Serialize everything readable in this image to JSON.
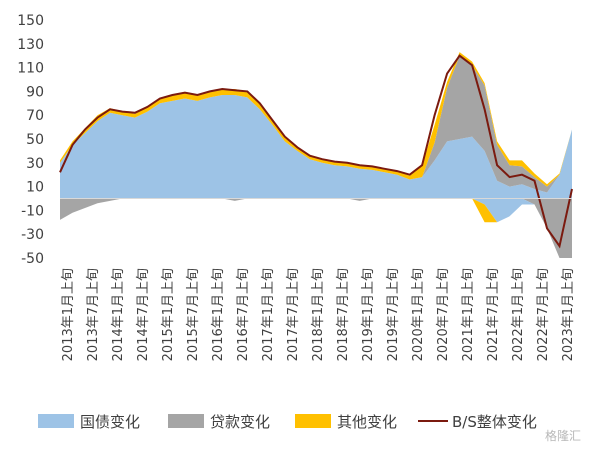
{
  "chart_data": {
    "type": "area",
    "y_ticks": [
      150,
      130,
      110,
      90,
      70,
      50,
      30,
      10,
      -10,
      -30,
      -50
    ],
    "ylim": [
      -50,
      150
    ],
    "x_ticks": [
      "2013年1月上旬",
      "2013年7月上旬",
      "2014年1月上旬",
      "2014年7月上旬",
      "2015年1月上旬",
      "2015年7月上旬",
      "2016年1月上旬",
      "2016年7月上旬",
      "2017年1月上旬",
      "2017年7月上旬",
      "2018年1月上旬",
      "2018年7月上旬",
      "2019年1月上旬",
      "2019年7月上旬",
      "2020年1月上旬",
      "2020年7月上旬",
      "2021年1月上旬",
      "2021年7月上旬",
      "2022年1月上旬",
      "2022年7月上旬",
      "2023年1月上旬"
    ],
    "x": [
      "2013-01",
      "2013-04",
      "2013-07",
      "2013-10",
      "2014-01",
      "2014-04",
      "2014-07",
      "2014-10",
      "2015-01",
      "2015-04",
      "2015-07",
      "2015-10",
      "2016-01",
      "2016-04",
      "2016-07",
      "2016-10",
      "2017-01",
      "2017-04",
      "2017-07",
      "2017-10",
      "2018-01",
      "2018-04",
      "2018-07",
      "2018-10",
      "2019-01",
      "2019-04",
      "2019-07",
      "2019-10",
      "2020-01",
      "2020-04",
      "2020-07",
      "2020-10",
      "2021-01",
      "2021-04",
      "2021-07",
      "2021-10",
      "2022-01",
      "2022-04",
      "2022-07",
      "2022-10",
      "2023-01",
      "2023-03"
    ],
    "series": [
      {
        "name": "国债变化",
        "color": "#9dc3e6",
        "stack": "pos",
        "values": [
          30,
          45,
          55,
          65,
          72,
          70,
          68,
          73,
          80,
          82,
          84,
          82,
          85,
          87,
          87,
          85,
          75,
          62,
          48,
          40,
          33,
          30,
          28,
          27,
          25,
          24,
          22,
          20,
          16,
          18,
          32,
          48,
          50,
          52,
          40,
          15,
          10,
          12,
          8,
          5,
          20,
          58
        ]
      },
      {
        "name": "贷款变化",
        "color": "#a5a5a5",
        "stack": "pos",
        "values": [
          0,
          0,
          0,
          0,
          0,
          0,
          0,
          0,
          0,
          0,
          0,
          0,
          0,
          0,
          0,
          0,
          0,
          0,
          0,
          0,
          0,
          0,
          0,
          0,
          0,
          0,
          0,
          0,
          0,
          0,
          15,
          45,
          70,
          60,
          55,
          30,
          18,
          15,
          10,
          5,
          0,
          0
        ]
      },
      {
        "name": "其他变化",
        "color": "#ffc000",
        "stack": "pos",
        "values": [
          2,
          3,
          4,
          5,
          4,
          3,
          3,
          4,
          4,
          5,
          5,
          5,
          5,
          5,
          5,
          5,
          5,
          4,
          4,
          3,
          3,
          3,
          3,
          3,
          3,
          3,
          3,
          3,
          3,
          10,
          15,
          5,
          3,
          3,
          2,
          3,
          4,
          5,
          3,
          2,
          1,
          0
        ]
      },
      {
        "name": "贷款变化_neg",
        "color": "#a5a5a5",
        "stack": "neg",
        "values": [
          -18,
          -12,
          -8,
          -4,
          -2,
          0,
          0,
          0,
          0,
          0,
          0,
          0,
          0,
          0,
          -2,
          0,
          0,
          0,
          0,
          0,
          0,
          0,
          0,
          0,
          -2,
          0,
          0,
          0,
          0,
          0,
          0,
          0,
          0,
          0,
          0,
          0,
          0,
          0,
          -5,
          -25,
          -50,
          -50
        ]
      },
      {
        "name": "国债变化_neg",
        "color": "#9dc3e6",
        "stack": "neg",
        "values": [
          0,
          0,
          0,
          0,
          0,
          0,
          0,
          0,
          0,
          0,
          0,
          0,
          0,
          0,
          0,
          0,
          0,
          0,
          0,
          0,
          0,
          0,
          0,
          0,
          0,
          0,
          0,
          0,
          0,
          0,
          0,
          0,
          0,
          0,
          -5,
          -20,
          -15,
          -5,
          0,
          0,
          0,
          0
        ]
      },
      {
        "name": "其他变化_neg",
        "color": "#ffc000",
        "stack": "neg",
        "values": [
          0,
          0,
          0,
          0,
          0,
          0,
          0,
          0,
          0,
          0,
          0,
          0,
          0,
          0,
          0,
          0,
          0,
          0,
          0,
          0,
          0,
          0,
          0,
          0,
          0,
          0,
          0,
          0,
          0,
          0,
          0,
          0,
          0,
          0,
          -15,
          0,
          0,
          0,
          0,
          0,
          0,
          0
        ]
      },
      {
        "name": "B/S整体变化",
        "color": "#7b1a0f",
        "type": "line",
        "values": [
          22,
          45,
          58,
          68,
          75,
          73,
          72,
          77,
          84,
          87,
          89,
          87,
          90,
          92,
          91,
          90,
          80,
          66,
          52,
          43,
          36,
          33,
          31,
          30,
          28,
          27,
          25,
          23,
          20,
          28,
          70,
          105,
          120,
          112,
          75,
          28,
          18,
          20,
          15,
          -25,
          -40,
          8
        ]
      }
    ],
    "legend": [
      "国债变化",
      "贷款变化",
      "其他变化",
      "B/S整体变化"
    ],
    "legend_position": "bottom",
    "grid": false,
    "watermark": "格隆汇"
  }
}
